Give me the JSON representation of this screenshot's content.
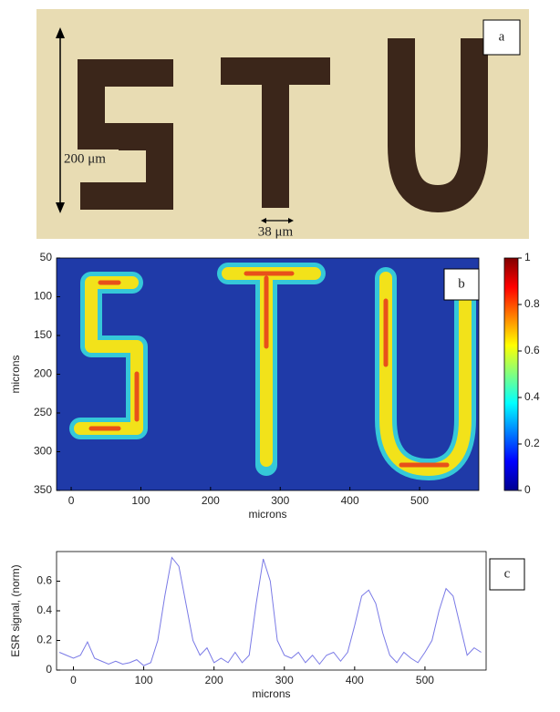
{
  "image_panel": {
    "label": "a",
    "height_label": "200 μm",
    "width_label": "38 μm"
  },
  "chart_data": [
    {
      "type": "heatmap",
      "annotation": "b",
      "xlabel": "microns",
      "ylabel": "microns",
      "xlim": [
        -21,
        585
      ],
      "xticks": [
        0,
        100,
        200,
        300,
        400,
        500
      ],
      "ylim": [
        350,
        50
      ],
      "yticks": [
        50,
        100,
        150,
        200,
        250,
        300,
        350
      ],
      "colorbar": {
        "lim": [
          0,
          1
        ],
        "ticks": [
          0,
          0.2,
          0.4,
          0.6,
          0.8,
          1
        ],
        "colormap": "jet"
      }
    },
    {
      "type": "line",
      "annotation": "c",
      "xlabel": "microns",
      "ylabel": "ESR signal, (norm)",
      "xlim": [
        -24,
        587
      ],
      "xticks": [
        0,
        100,
        200,
        300,
        400,
        500
      ],
      "ylim": [
        0,
        0.8
      ],
      "yticks": [
        0,
        0.2,
        0.4,
        0.6
      ],
      "x": [
        -20,
        -10,
        0,
        10,
        20,
        30,
        40,
        50,
        60,
        70,
        80,
        90,
        100,
        110,
        120,
        130,
        140,
        150,
        160,
        170,
        180,
        190,
        200,
        210,
        220,
        230,
        240,
        250,
        260,
        270,
        280,
        290,
        300,
        310,
        320,
        330,
        340,
        350,
        360,
        370,
        380,
        390,
        400,
        410,
        420,
        430,
        440,
        450,
        460,
        470,
        480,
        490,
        500,
        510,
        520,
        530,
        540,
        550,
        560,
        570,
        580
      ],
      "series": [
        {
          "color": "#7a7ae6",
          "values": [
            0.12,
            0.1,
            0.08,
            0.1,
            0.19,
            0.08,
            0.06,
            0.04,
            0.06,
            0.04,
            0.05,
            0.07,
            0.03,
            0.05,
            0.2,
            0.5,
            0.76,
            0.7,
            0.45,
            0.2,
            0.1,
            0.15,
            0.05,
            0.08,
            0.05,
            0.12,
            0.05,
            0.1,
            0.45,
            0.75,
            0.6,
            0.2,
            0.1,
            0.08,
            0.12,
            0.05,
            0.1,
            0.04,
            0.1,
            0.12,
            0.06,
            0.12,
            0.3,
            0.5,
            0.54,
            0.45,
            0.25,
            0.1,
            0.05,
            0.12,
            0.08,
            0.05,
            0.12,
            0.2,
            0.4,
            0.55,
            0.5,
            0.3,
            0.1,
            0.15,
            0.12
          ]
        }
      ]
    }
  ]
}
